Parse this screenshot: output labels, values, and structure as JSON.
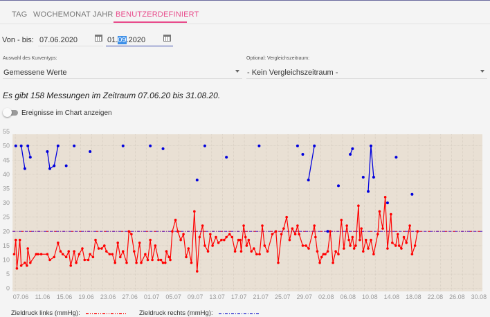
{
  "tabs": [
    {
      "label": "TAG",
      "active": false
    },
    {
      "label": "WOCHE",
      "active": false
    },
    {
      "label": "MONAT",
      "active": false
    },
    {
      "label": "JAHR",
      "active": false
    },
    {
      "label": "BENUTZERDEFINIERT",
      "active": true
    }
  ],
  "range": {
    "label": "Von - bis:",
    "from": "07.06.2020",
    "to_prefix": "01.",
    "to_selected": "09",
    "to_suffix": ".2020"
  },
  "curve_type": {
    "label": "Auswahl des Kurventyps:",
    "value": "Gemessene Werte"
  },
  "comparison": {
    "label": "Optional: Vergleichszeitraum:",
    "value": "- Kein Vergleichszeitraum -"
  },
  "info_text": "Es gibt 158 Messungen im Zeitraum 07.06.20 bis 31.08.20.",
  "events_toggle": {
    "label": "Ereignisse im Chart anzeigen",
    "on": false
  },
  "legend": {
    "left": "Zieldruck links (mmHg):",
    "right": "Zieldruck rechts (mmHg):"
  },
  "colors": {
    "accent": "#e84a8a",
    "plot_bg": "#e9e0d4",
    "series_left": "#ff0000",
    "series_right": "#0000dd",
    "target_right": "#5a2fd0"
  },
  "chart_data": {
    "type": "line",
    "xlim": [
      "2020-06-05T12:00",
      "2020-08-31T00:00"
    ],
    "ylim": [
      0,
      55
    ],
    "yticks": [
      0,
      5,
      10,
      15,
      20,
      25,
      30,
      35,
      40,
      45,
      50,
      55
    ],
    "xticks": [
      "07.06",
      "11.06",
      "15.06",
      "19.06",
      "23.06",
      "27.06",
      "01.07",
      "05.07",
      "09.07",
      "13.07",
      "17.07",
      "21.07",
      "25.07",
      "29.07",
      "02.08",
      "06.08",
      "10.08",
      "14.08",
      "18.08",
      "22.08",
      "26.08",
      "30.08"
    ],
    "grid": true,
    "targets": [
      {
        "name": "Zieldruck links (mmHg)",
        "value": 20,
        "color": "#ff0000",
        "style": "dash-dot-dot"
      },
      {
        "name": "Zieldruck rechts (mmHg)",
        "value": 20,
        "color": "#5a2fd0",
        "style": "dash-dot"
      }
    ],
    "series_left": [
      [
        "2020-06-05T19",
        12
      ],
      [
        "2020-06-06T02",
        17
      ],
      [
        "2020-06-06T07",
        7
      ],
      [
        "2020-06-06T20",
        17
      ],
      [
        "2020-06-07T02",
        8
      ],
      [
        "2020-06-07T18",
        9
      ],
      [
        "2020-06-08T03",
        8
      ],
      [
        "2020-06-08T07",
        14
      ],
      [
        "2020-06-08T18",
        9
      ],
      [
        "2020-06-09T20",
        12
      ],
      [
        "2020-06-10T04",
        12
      ],
      [
        "2020-06-10T18",
        12
      ],
      [
        "2020-06-11T21",
        12
      ],
      [
        "2020-06-12T08",
        10
      ],
      [
        "2020-06-13T03",
        11
      ],
      [
        "2020-06-13T20",
        16
      ],
      [
        "2020-06-14T07",
        13
      ],
      [
        "2020-06-14T17",
        12
      ],
      [
        "2020-06-15T08",
        11
      ],
      [
        "2020-06-15T19",
        13
      ],
      [
        "2020-06-16T04",
        8
      ],
      [
        "2020-06-16T19",
        13
      ],
      [
        "2020-06-17T04",
        9
      ],
      [
        "2020-06-17T17",
        12
      ],
      [
        "2020-06-18T07",
        14
      ],
      [
        "2020-06-18T17",
        10
      ],
      [
        "2020-06-19T09",
        10
      ],
      [
        "2020-06-19T17",
        12
      ],
      [
        "2020-06-20T06",
        11
      ],
      [
        "2020-06-20T17",
        17
      ],
      [
        "2020-06-21T07",
        14
      ],
      [
        "2020-06-21T20",
        14
      ],
      [
        "2020-06-22T08",
        15
      ],
      [
        "2020-06-22T17",
        13
      ],
      [
        "2020-06-23T07",
        12
      ],
      [
        "2020-06-23T19",
        12
      ],
      [
        "2020-06-24T07",
        9
      ],
      [
        "2020-06-24T19",
        16
      ],
      [
        "2020-06-25T06",
        11
      ],
      [
        "2020-06-25T18",
        13
      ],
      [
        "2020-06-26T10",
        9
      ],
      [
        "2020-06-26T20",
        20
      ],
      [
        "2020-06-27T07",
        19
      ],
      [
        "2020-06-27T19",
        13
      ],
      [
        "2020-06-28T05",
        9
      ],
      [
        "2020-06-28T19",
        16
      ],
      [
        "2020-06-29T02",
        9
      ],
      [
        "2020-06-29T20",
        12
      ],
      [
        "2020-06-30T07",
        10
      ],
      [
        "2020-06-30T18",
        17
      ],
      [
        "2020-07-01T03",
        10
      ],
      [
        "2020-07-01T16",
        15
      ],
      [
        "2020-07-02T06",
        10
      ],
      [
        "2020-07-02T17",
        10
      ],
      [
        "2020-07-03T02",
        9
      ],
      [
        "2020-07-03T12",
        9
      ],
      [
        "2020-07-03T17",
        13
      ],
      [
        "2020-07-04T04",
        11
      ],
      [
        "2020-07-04T10",
        10
      ],
      [
        "2020-07-04T19",
        20
      ],
      [
        "2020-07-05T09",
        24
      ],
      [
        "2020-07-05T19",
        20
      ],
      [
        "2020-07-06T08",
        17
      ],
      [
        "2020-07-06T20",
        19
      ],
      [
        "2020-07-07T08",
        11
      ],
      [
        "2020-07-07T18",
        14
      ],
      [
        "2020-07-08T07",
        9
      ],
      [
        "2020-07-08T20",
        27
      ],
      [
        "2020-07-09T08",
        6
      ],
      [
        "2020-07-09T19",
        18
      ],
      [
        "2020-07-10T08",
        22
      ],
      [
        "2020-07-10T18",
        15
      ],
      [
        "2020-07-11T08",
        13
      ],
      [
        "2020-07-11T18",
        19
      ],
      [
        "2020-07-12T04",
        15
      ],
      [
        "2020-07-12T19",
        18
      ],
      [
        "2020-07-13T06",
        16
      ],
      [
        "2020-07-13T19",
        17
      ],
      [
        "2020-07-14T07",
        17
      ],
      [
        "2020-07-14T17",
        18
      ],
      [
        "2020-07-15T07",
        19
      ],
      [
        "2020-07-15T18",
        18
      ],
      [
        "2020-07-16T07",
        13
      ],
      [
        "2020-07-16T22",
        17
      ],
      [
        "2020-07-17T06",
        17
      ],
      [
        "2020-07-17T10",
        13
      ],
      [
        "2020-07-17T21",
        22
      ],
      [
        "2020-07-18T05",
        18
      ],
      [
        "2020-07-18T10",
        15
      ],
      [
        "2020-07-18T19",
        17
      ],
      [
        "2020-07-19T07",
        13
      ],
      [
        "2020-07-19T18",
        14
      ],
      [
        "2020-07-20T06",
        12
      ],
      [
        "2020-07-20T19",
        12
      ],
      [
        "2020-07-21T07",
        22
      ],
      [
        "2020-07-21T17",
        15
      ],
      [
        "2020-07-22T06",
        13
      ],
      [
        "2020-07-23T03",
        19
      ],
      [
        "2020-07-23T19",
        20
      ],
      [
        "2020-07-24T05",
        9
      ],
      [
        "2020-07-24T19",
        19
      ],
      [
        "2020-07-25T05",
        21
      ],
      [
        "2020-07-25T18",
        25
      ],
      [
        "2020-07-26T07",
        17
      ],
      [
        "2020-07-26T19",
        21
      ],
      [
        "2020-07-27T08",
        19
      ],
      [
        "2020-07-27T18",
        22
      ],
      [
        "2020-07-28T01",
        19
      ],
      [
        "2020-07-28T17",
        15
      ],
      [
        "2020-07-29T07",
        15
      ],
      [
        "2020-07-29T19",
        14
      ],
      [
        "2020-07-30T20",
        22
      ],
      [
        "2020-07-31T01",
        18
      ],
      [
        "2020-07-31T09",
        13
      ],
      [
        "2020-07-31T20",
        9
      ],
      [
        "2020-08-01T04",
        11
      ],
      [
        "2020-08-01T12",
        12
      ],
      [
        "2020-08-01T20",
        12
      ],
      [
        "2020-08-02T07",
        13
      ],
      [
        "2020-08-02T18",
        20
      ],
      [
        "2020-08-03T06",
        9
      ],
      [
        "2020-08-03T18",
        13
      ],
      [
        "2020-08-04T06",
        12
      ],
      [
        "2020-08-04T19",
        24
      ],
      [
        "2020-08-05T06",
        14
      ],
      [
        "2020-08-05T19",
        22
      ],
      [
        "2020-08-06T04",
        17
      ],
      [
        "2020-08-06T10",
        15
      ],
      [
        "2020-08-06T20",
        18
      ],
      [
        "2020-08-07T03",
        14
      ],
      [
        "2020-08-07T10",
        15
      ],
      [
        "2020-08-07T22",
        29
      ],
      [
        "2020-08-08T04",
        17
      ],
      [
        "2020-08-08T11",
        21
      ],
      [
        "2020-08-08T19",
        13
      ],
      [
        "2020-08-09T07",
        17
      ],
      [
        "2020-08-09T17",
        14
      ],
      [
        "2020-08-10T05",
        17
      ],
      [
        "2020-08-10T17",
        12
      ],
      [
        "2020-08-11T11",
        19
      ],
      [
        "2020-08-11T19",
        27
      ],
      [
        "2020-08-12T09",
        21
      ],
      [
        "2020-08-12T20",
        32
      ],
      [
        "2020-08-13T06",
        14
      ],
      [
        "2020-08-13T21",
        26
      ],
      [
        "2020-08-14T03",
        16
      ],
      [
        "2020-08-14T18",
        15
      ],
      [
        "2020-08-15T03",
        19
      ],
      [
        "2020-08-15T09",
        15
      ],
      [
        "2020-08-15T19",
        14
      ],
      [
        "2020-08-16T06",
        18
      ],
      [
        "2020-08-16T17",
        16
      ],
      [
        "2020-08-17T08",
        22
      ],
      [
        "2020-08-17T18",
        12
      ],
      [
        "2020-08-18T07",
        15
      ],
      [
        "2020-08-18T18",
        20
      ]
    ],
    "series_right": [
      [
        [
          "2020-06-06T02",
          50
        ]
      ],
      [
        [
          "2020-06-07T02",
          50
        ],
        [
          "2020-06-07T18",
          42
        ]
      ],
      [
        [
          "2020-06-08T07",
          50
        ],
        [
          "2020-06-08T18",
          46
        ]
      ],
      [
        [
          "2020-06-11T21",
          48
        ],
        [
          "2020-06-12T08",
          42
        ],
        [
          "2020-06-13T03",
          43
        ],
        [
          "2020-06-13T20",
          50
        ]
      ],
      [
        [
          "2020-06-15T08",
          43
        ]
      ],
      [
        [
          "2020-06-16T19",
          50
        ]
      ],
      [
        [
          "2020-06-19T17",
          48
        ]
      ],
      [
        [
          "2020-06-25T18",
          50
        ]
      ],
      [
        [
          "2020-06-30T18",
          50
        ]
      ],
      [
        [
          "2020-07-03T02",
          49
        ]
      ],
      [
        [
          "2020-07-09T08",
          38
        ]
      ],
      [
        [
          "2020-07-10T18",
          50
        ]
      ],
      [
        [
          "2020-07-14T17",
          46
        ]
      ],
      [
        [
          "2020-07-20T17",
          50
        ]
      ],
      [
        [
          "2020-07-27T18",
          50
        ]
      ],
      [
        [
          "2020-07-28T17",
          47
        ]
      ],
      [
        [
          "2020-07-29T18",
          38
        ],
        [
          "2020-07-30T20",
          50
        ]
      ],
      [
        [
          "2020-08-02T07",
          20
        ]
      ],
      [
        [
          "2020-08-04T06",
          36
        ]
      ],
      [
        [
          "2020-08-06T10",
          47
        ],
        [
          "2020-08-06T20",
          49
        ]
      ],
      [
        [
          "2020-08-08T19",
          39
        ]
      ],
      [
        [
          "2020-08-09T17",
          34
        ],
        [
          "2020-08-10T05",
          50
        ],
        [
          "2020-08-10T17",
          39
        ]
      ],
      [
        [
          "2020-08-13T06",
          30
        ]
      ],
      [
        [
          "2020-08-14T20",
          46
        ]
      ],
      [
        [
          "2020-08-17T18",
          33
        ]
      ]
    ]
  }
}
